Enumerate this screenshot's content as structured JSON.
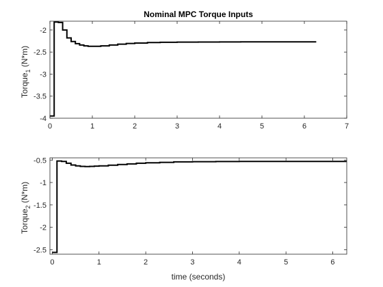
{
  "figure": {
    "background": "#ffffff",
    "line_color": "#000000",
    "axes_color": "#262626"
  },
  "chart_data": [
    {
      "type": "line",
      "title": "Nominal MPC Torque Inputs",
      "xlabel": "",
      "ylabel": {
        "base": "Torque",
        "sub": "1",
        "unit": " (N*m)"
      },
      "xlim": [
        0,
        7
      ],
      "ylim": [
        -4,
        -1.8
      ],
      "xticks": [
        0,
        1,
        2,
        3,
        4,
        5,
        6,
        7
      ],
      "yticks": [
        -4,
        -3.5,
        -3,
        -2.5,
        -2
      ],
      "xtick_labels": [
        "0",
        "1",
        "2",
        "3",
        "4",
        "5",
        "6",
        "7"
      ],
      "ytick_labels": [
        "-4",
        "-3.5",
        "-3",
        "-2.5",
        "-2"
      ],
      "grid": false,
      "series": [
        {
          "style": "step",
          "x": [
            0,
            0.1,
            0.2,
            0.3,
            0.4,
            0.5,
            0.6,
            0.7,
            0.8,
            0.9,
            1.0,
            1.2,
            1.4,
            1.6,
            1.8,
            2.0,
            2.3,
            2.6,
            3.0,
            3.5,
            4.0,
            4.5,
            5.0,
            5.5,
            6.0,
            6.28
          ],
          "y": [
            -3.95,
            -1.82,
            -1.83,
            -2.0,
            -2.18,
            -2.26,
            -2.31,
            -2.34,
            -2.36,
            -2.37,
            -2.37,
            -2.36,
            -2.34,
            -2.32,
            -2.305,
            -2.295,
            -2.285,
            -2.278,
            -2.274,
            -2.272,
            -2.271,
            -2.27,
            -2.27,
            -2.27,
            -2.27,
            -2.27
          ]
        }
      ]
    },
    {
      "type": "line",
      "title": "",
      "xlabel": "time (seconds)",
      "ylabel": {
        "base": "Torque",
        "sub": "2",
        "unit": " (N*m)"
      },
      "xlim": [
        -0.05,
        6.3
      ],
      "ylim": [
        -2.6,
        -0.45
      ],
      "xticks": [
        0,
        1,
        2,
        3,
        4,
        5,
        6
      ],
      "yticks": [
        -2.5,
        -2,
        -1.5,
        -1,
        -0.5
      ],
      "xtick_labels": [
        "0",
        "1",
        "2",
        "3",
        "4",
        "5",
        "6"
      ],
      "ytick_labels": [
        "-2.5",
        "-2",
        "-1.5",
        "-1",
        "-0.5"
      ],
      "grid": false,
      "series": [
        {
          "style": "step",
          "x": [
            0,
            0.1,
            0.2,
            0.3,
            0.4,
            0.5,
            0.6,
            0.7,
            0.8,
            0.9,
            1.0,
            1.2,
            1.4,
            1.6,
            1.8,
            2.0,
            2.3,
            2.6,
            3.0,
            3.5,
            4.0,
            4.5,
            5.0,
            5.5,
            6.0,
            6.3
          ],
          "y": [
            -2.56,
            -0.52,
            -0.53,
            -0.57,
            -0.61,
            -0.63,
            -0.64,
            -0.645,
            -0.64,
            -0.635,
            -0.63,
            -0.615,
            -0.6,
            -0.585,
            -0.57,
            -0.56,
            -0.55,
            -0.54,
            -0.535,
            -0.532,
            -0.53,
            -0.53,
            -0.53,
            -0.53,
            -0.53,
            -0.53
          ]
        }
      ]
    }
  ]
}
